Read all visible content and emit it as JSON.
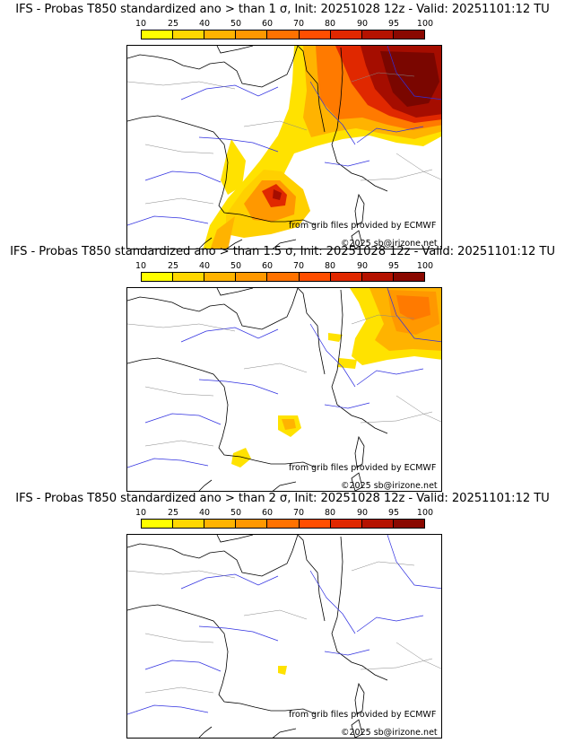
{
  "legend": {
    "ticks": [
      "10",
      "25",
      "40",
      "50",
      "60",
      "70",
      "80",
      "90",
      "95",
      "100"
    ],
    "colors": [
      "#ffff00",
      "#ffd700",
      "#ffb300",
      "#ff9800",
      "#ff7200",
      "#ff4e00",
      "#e02800",
      "#b51200",
      "#8a0800"
    ]
  },
  "panels": [
    {
      "title": "IFS - Probas T850  standardized ano > than 1 σ, Init: 20251028 12z - Valid: 20251101:12 TU",
      "credit_source": "from grib files provided by ECMWF",
      "credit_copyright": "©2025 sb@irizone.net"
    },
    {
      "title": "IFS - Probas T850  standardized ano > than 1.5 σ, Init: 20251028 12z - Valid: 20251101:12 TU",
      "credit_source": "from grib files provided by ECMWF",
      "credit_copyright": "©2025 sb@irizone.net"
    },
    {
      "title": "IFS - Probas T850  standardized ano > than 2 σ, Init: 20251028 12z - Valid: 20251101:12 TU",
      "credit_source": "from grib files provided by ECMWF",
      "credit_copyright": "©2025 sb@irizone.net"
    }
  ]
}
